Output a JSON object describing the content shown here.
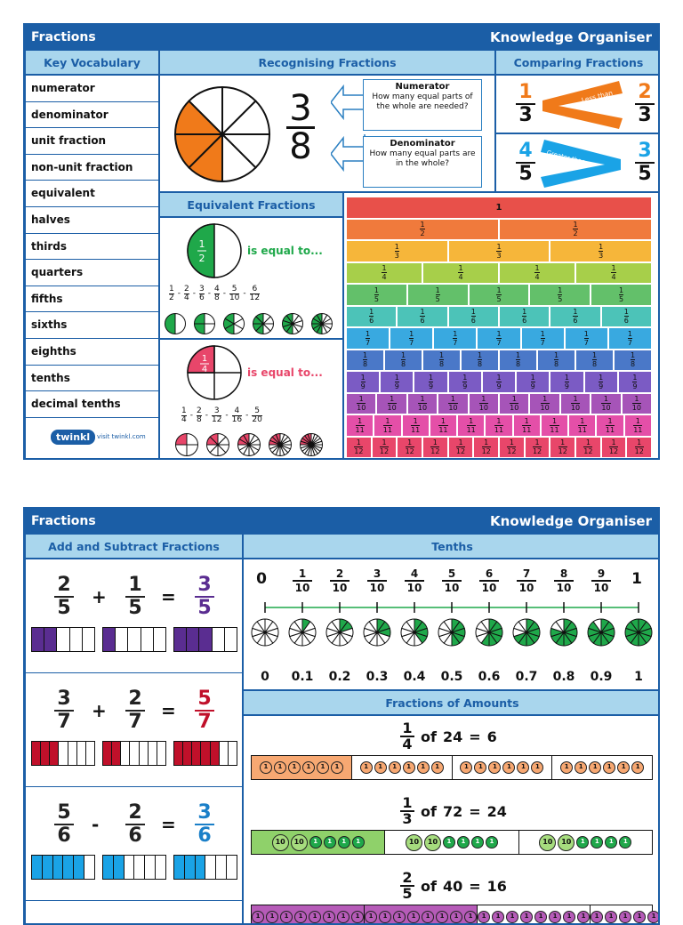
{
  "page1": {
    "header": {
      "title": "Fractions",
      "right": "Knowledge Organiser"
    },
    "vocab": {
      "heading": "Key Vocabulary",
      "items": [
        "numerator",
        "denominator",
        "unit fraction",
        "non-unit fraction",
        "equivalent",
        "halves",
        "thirds",
        "quarters",
        "fifths",
        "sixths",
        "eighths",
        "tenths",
        "decimal tenths"
      ],
      "logo": "twinkl",
      "logo_url": "visit twinkl.com"
    },
    "recognising": {
      "heading": "Recognising Fractions",
      "numerator": "3",
      "denominator": "8",
      "shaded_parts": 3,
      "total_parts": 8,
      "numerator_title": "Numerator",
      "numerator_text": "How many equal parts of the whole are needed?",
      "denominator_title": "Denominator",
      "denominator_text": "How many equal parts are in the whole?"
    },
    "comparing": {
      "heading": "Comparing Fractions",
      "row1": {
        "left_n": "1",
        "left_d": "3",
        "label": "Less than",
        "right_n": "2",
        "right_d": "3"
      },
      "row2": {
        "left_n": "4",
        "left_d": "5",
        "label": "Greater than",
        "right_n": "3",
        "right_d": "5"
      }
    },
    "equivalent": {
      "heading": "Equivalent Fractions",
      "half": {
        "n": "1",
        "d": "2",
        "text": "is equal to...",
        "seq": [
          [
            "1",
            "2"
          ],
          [
            "2",
            "4"
          ],
          [
            "3",
            "6"
          ],
          [
            "4",
            "8"
          ],
          [
            "5",
            "10"
          ],
          [
            "6",
            "12"
          ]
        ]
      },
      "quarter": {
        "n": "1",
        "d": "4",
        "text": "is equal to...",
        "seq": [
          [
            "1",
            "4"
          ],
          [
            "2",
            "8"
          ],
          [
            "3",
            "12"
          ],
          [
            "4",
            "16"
          ],
          [
            "5",
            "20"
          ]
        ]
      }
    },
    "wall": {
      "whole_label": "1",
      "rows": [
        {
          "d": 1,
          "color": "#e8504a"
        },
        {
          "d": 2,
          "color": "#f07a3c"
        },
        {
          "d": 3,
          "color": "#f6b63a"
        },
        {
          "d": 4,
          "color": "#a7cf4a"
        },
        {
          "d": 5,
          "color": "#63c06a"
        },
        {
          "d": 6,
          "color": "#4cc3b8"
        },
        {
          "d": 7,
          "color": "#39a9e0"
        },
        {
          "d": 8,
          "color": "#4a78c8"
        },
        {
          "d": 9,
          "color": "#7b5bc4"
        },
        {
          "d": 10,
          "color": "#a654b8"
        },
        {
          "d": 11,
          "color": "#e44fa8"
        },
        {
          "d": 12,
          "color": "#e8466a"
        }
      ]
    }
  },
  "page2": {
    "header": {
      "title": "Fractions",
      "right": "Knowledge Organiser"
    },
    "add": {
      "heading": "Add and Subtract Fractions",
      "rows": [
        {
          "a_n": "2",
          "a_d": "5",
          "op": "+",
          "b_n": "1",
          "b_d": "5",
          "eq": "=",
          "r_n": "3",
          "r_d": "5",
          "parts": 5,
          "a": 2,
          "b": 1,
          "r": 3,
          "color": "#5a2d91",
          "rcolor": "#5a2d91"
        },
        {
          "a_n": "3",
          "a_d": "7",
          "op": "+",
          "b_n": "2",
          "b_d": "7",
          "eq": "=",
          "r_n": "5",
          "r_d": "7",
          "parts": 7,
          "a": 3,
          "b": 2,
          "r": 5,
          "color": "#c0102a",
          "rcolor": "#c0102a"
        },
        {
          "a_n": "5",
          "a_d": "6",
          "op": "-",
          "b_n": "2",
          "b_d": "6",
          "eq": "=",
          "r_n": "3",
          "r_d": "6",
          "parts": 6,
          "a": 5,
          "b": 2,
          "r": 3,
          "color": "#1aa3e6",
          "rcolor": "#1a7fc8"
        }
      ]
    },
    "tenths": {
      "heading": "Tenths",
      "start": "0",
      "end": "1",
      "fractions": [
        [
          "1",
          "10"
        ],
        [
          "2",
          "10"
        ],
        [
          "3",
          "10"
        ],
        [
          "4",
          "10"
        ],
        [
          "5",
          "10"
        ],
        [
          "6",
          "10"
        ],
        [
          "7",
          "10"
        ],
        [
          "8",
          "10"
        ],
        [
          "9",
          "10"
        ]
      ],
      "decimals": [
        "0",
        "0.1",
        "0.2",
        "0.3",
        "0.4",
        "0.5",
        "0.6",
        "0.7",
        "0.8",
        "0.9",
        "1"
      ]
    },
    "amounts": {
      "heading": "Fractions of Amounts",
      "rows": [
        {
          "n": "1",
          "d": "4",
          "of": "of",
          "whole": "24",
          "eq": "=",
          "ans": "6",
          "groups": 4,
          "per": [
            "1",
            "1",
            "1",
            "1",
            "1",
            "1"
          ],
          "fill": "#f7a872"
        },
        {
          "n": "1",
          "d": "3",
          "of": "of",
          "whole": "72",
          "eq": "=",
          "ans": "24",
          "groups": 3,
          "per": [
            "10",
            "10",
            "1",
            "1",
            "1",
            "1"
          ],
          "fill": "#8fd16a"
        },
        {
          "n": "2",
          "d": "5",
          "of": "of",
          "whole": "40",
          "eq": "=",
          "ans": "16",
          "groups": 5,
          "per": [
            "1",
            "1",
            "1",
            "1",
            "1",
            "1",
            "1",
            "1"
          ],
          "fill": "#b65bb8"
        }
      ]
    }
  }
}
